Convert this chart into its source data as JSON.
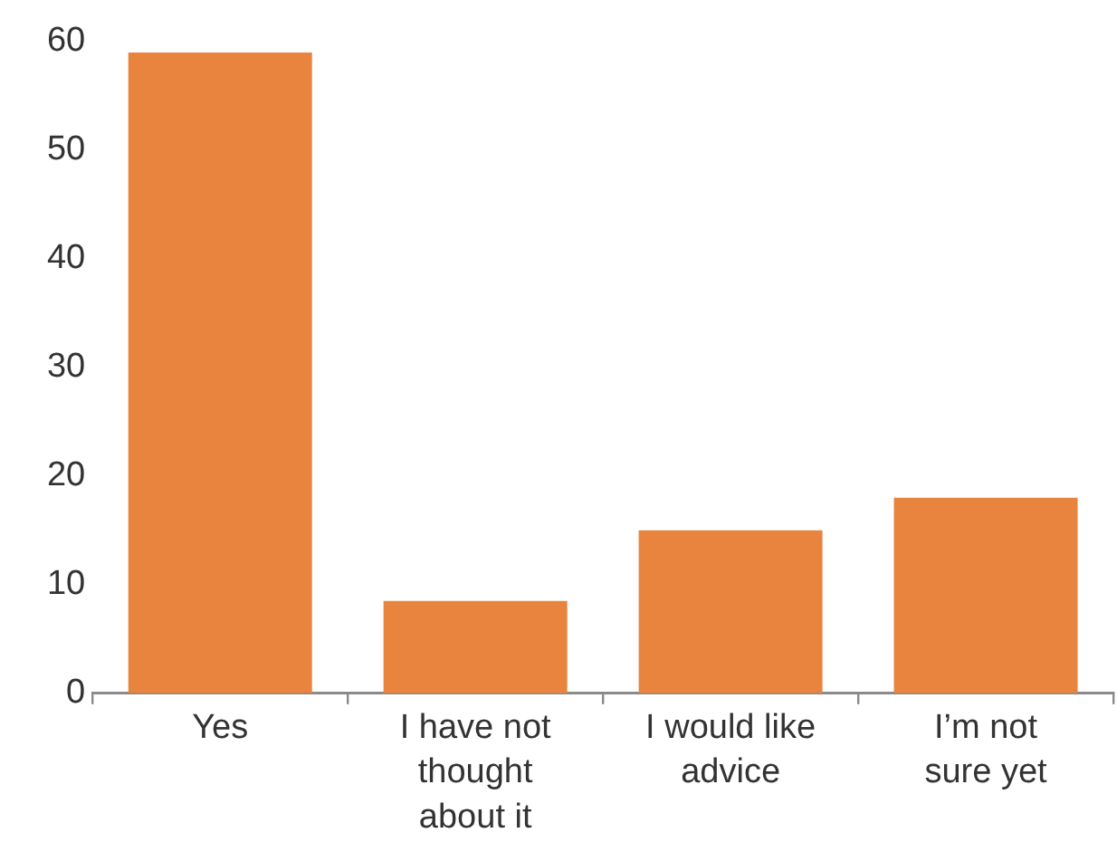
{
  "chart_data": {
    "type": "bar",
    "categories": [
      "Yes",
      "I have not thought about it",
      "I would like advice",
      "I’m not sure yet"
    ],
    "values": [
      59,
      8.5,
      15,
      18
    ],
    "color": "#e8843e",
    "ylim": [
      0,
      60
    ],
    "yticks": [
      0,
      10,
      20,
      30,
      40,
      50,
      60
    ]
  }
}
